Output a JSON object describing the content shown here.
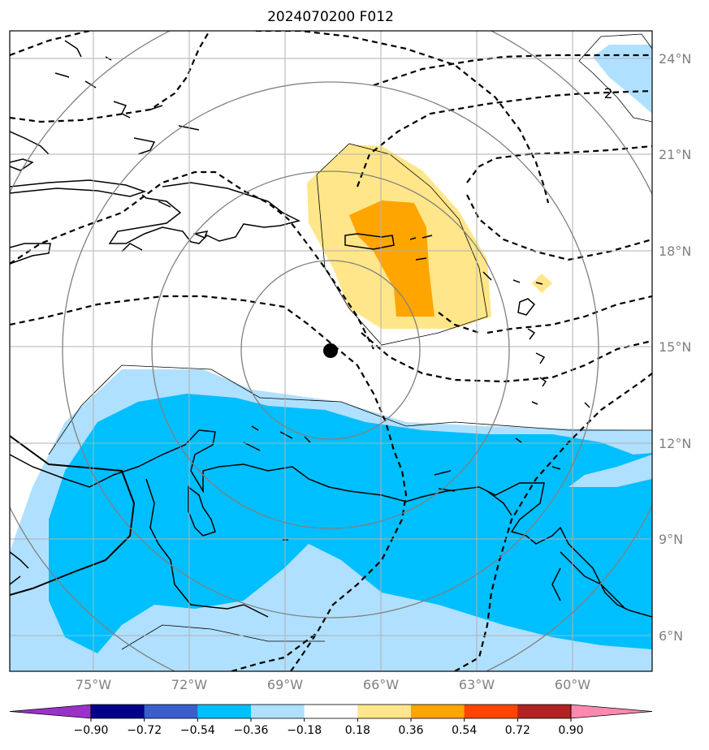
{
  "title": "2024070200 F012",
  "lon_labels": [
    "75°W",
    "72°W",
    "69°W",
    "66°W",
    "63°W",
    "60°W"
  ],
  "lat_labels": [
    "24°N",
    "21°N",
    "18°N",
    "15°N",
    "12°N",
    "9°N",
    "6°N"
  ],
  "contour_label": "2",
  "colorbar": {
    "ticks": [
      "−0.90",
      "−0.72",
      "−0.54",
      "−0.36",
      "−0.18",
      "0.18",
      "0.36",
      "0.54",
      "0.72",
      "0.90"
    ],
    "colors": [
      "#9932CC",
      "#00008B",
      "#3A5FCD",
      "#00BFFF",
      "#B0E0FF",
      "#FFFFFF",
      "#FFE68A",
      "#FFA500",
      "#FF4500",
      "#B22222",
      "#FF88B0"
    ]
  },
  "storm_center": {
    "lon": "67.7°W",
    "lat": "15.1°N"
  }
}
